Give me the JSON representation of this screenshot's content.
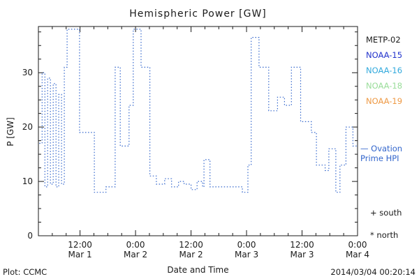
{
  "title": "Hemispheric Power [GW]",
  "ylabel": "P [GW]",
  "xlabel": "Date and Time",
  "footer": {
    "left": "Plot: CCMC",
    "right": "2014/03/04 00:20:14"
  },
  "legend": [
    {
      "label": "METP-02",
      "color": "#1a1a1a"
    },
    {
      "label": "NOAA-15",
      "color": "#2233cc"
    },
    {
      "label": "NOAA-16",
      "color": "#33aadd"
    },
    {
      "label": "NOAA-18",
      "color": "#99dd99"
    },
    {
      "label": "NOAA-19",
      "color": "#ee9944"
    }
  ],
  "annotations": {
    "ovation_line1": "— Ovation",
    "ovation_line2": "Prime HPI",
    "ovation_color": "#3366cc",
    "south": "+ south",
    "north": "* north"
  },
  "chart_data": {
    "type": "line",
    "subtype": "dotted-step",
    "line_color": "#3366cc",
    "title": "Hemispheric Power [GW]",
    "xlabel": "Date and Time",
    "ylabel": "P [GW]",
    "x_unit": "hours since 2014 Mar 1 00:00",
    "xlim": [
      3,
      72
    ],
    "ylim": [
      0,
      38.5
    ],
    "yticks": [
      0,
      10,
      20,
      30
    ],
    "y_minor_step": 2.5,
    "x_minor_step": 3,
    "xticks": [
      {
        "hour": 12,
        "time": "12:00",
        "date": "Mar 1"
      },
      {
        "hour": 24,
        "time": "0:00",
        "date": "Mar 2"
      },
      {
        "hour": 36,
        "time": "12:00",
        "date": "Mar 2"
      },
      {
        "hour": 48,
        "time": "0:00",
        "date": "Mar 3"
      },
      {
        "hour": 60,
        "time": "12:00",
        "date": "Mar 3"
      },
      {
        "hour": 72,
        "time": "0:00",
        "date": "Mar 4"
      }
    ],
    "steps": [
      [
        3.2,
        17
      ],
      [
        3.8,
        30
      ],
      [
        4.4,
        9
      ],
      [
        5.0,
        29
      ],
      [
        5.6,
        9.5
      ],
      [
        6.2,
        28
      ],
      [
        6.8,
        9
      ],
      [
        7.4,
        26
      ],
      [
        8.0,
        9.5
      ],
      [
        8.6,
        31
      ],
      [
        9.2,
        38
      ],
      [
        11.6,
        38
      ],
      [
        11.9,
        19
      ],
      [
        14.8,
        19
      ],
      [
        15.1,
        8
      ],
      [
        17.3,
        8
      ],
      [
        17.6,
        9
      ],
      [
        19.3,
        9
      ],
      [
        19.6,
        31
      ],
      [
        20.4,
        31
      ],
      [
        20.7,
        16.5
      ],
      [
        22.3,
        16.5
      ],
      [
        22.6,
        24
      ],
      [
        23.2,
        24
      ],
      [
        23.5,
        38
      ],
      [
        24.9,
        38
      ],
      [
        25.2,
        31
      ],
      [
        26.8,
        31
      ],
      [
        27.1,
        11
      ],
      [
        28.2,
        11
      ],
      [
        28.5,
        9.5
      ],
      [
        30.0,
        9.5
      ],
      [
        30.3,
        10.5
      ],
      [
        31.5,
        10.5
      ],
      [
        31.8,
        9
      ],
      [
        33.0,
        9
      ],
      [
        33.3,
        10
      ],
      [
        34.2,
        10
      ],
      [
        34.5,
        9.5
      ],
      [
        35.7,
        9.5
      ],
      [
        36.0,
        8.5
      ],
      [
        37.0,
        8.5
      ],
      [
        37.3,
        10
      ],
      [
        38.2,
        10
      ],
      [
        38.5,
        9
      ],
      [
        38.8,
        14
      ],
      [
        39.8,
        14
      ],
      [
        40.1,
        9
      ],
      [
        46.8,
        9
      ],
      [
        47.1,
        8
      ],
      [
        48.0,
        8
      ],
      [
        48.3,
        13
      ],
      [
        48.7,
        13
      ],
      [
        49.0,
        36.5
      ],
      [
        50.4,
        36.5
      ],
      [
        50.7,
        31
      ],
      [
        52.5,
        31
      ],
      [
        52.8,
        23
      ],
      [
        54.4,
        23
      ],
      [
        54.7,
        25.5
      ],
      [
        55.9,
        25.5
      ],
      [
        56.2,
        24
      ],
      [
        57.4,
        24
      ],
      [
        57.7,
        31
      ],
      [
        59.4,
        31
      ],
      [
        59.7,
        21
      ],
      [
        61.7,
        21
      ],
      [
        62.0,
        19
      ],
      [
        62.8,
        19
      ],
      [
        63.1,
        13
      ],
      [
        64.7,
        13
      ],
      [
        65.0,
        12
      ],
      [
        65.5,
        12
      ],
      [
        65.8,
        16
      ],
      [
        67.0,
        16
      ],
      [
        67.3,
        8
      ],
      [
        67.9,
        8
      ],
      [
        68.2,
        13
      ],
      [
        69.2,
        13
      ],
      [
        69.5,
        20
      ],
      [
        70.7,
        20
      ],
      [
        71.0,
        16.5
      ],
      [
        72.0,
        16.5
      ]
    ]
  }
}
